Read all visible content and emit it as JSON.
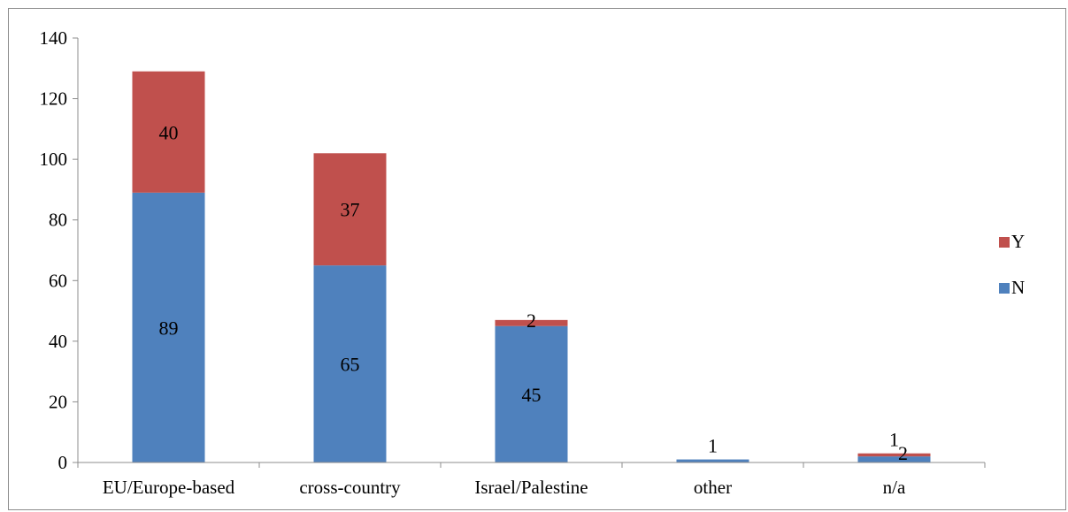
{
  "chart_data": {
    "type": "bar",
    "stacked": true,
    "title": "",
    "xlabel": "",
    "ylabel": "",
    "categories": [
      "EU/Europe-based",
      "cross-country",
      "Israel/Palestine",
      "other",
      "n/a"
    ],
    "series": [
      {
        "name": "N",
        "values": [
          89,
          65,
          45,
          1,
          2
        ],
        "color": "#4f81bd",
        "labels": [
          "89",
          "65",
          "45",
          "1",
          "2"
        ]
      },
      {
        "name": "Y",
        "values": [
          40,
          37,
          2,
          0,
          1
        ],
        "color": "#c0504d",
        "labels": [
          "40",
          "37",
          "2",
          "",
          "1"
        ]
      }
    ],
    "ylim": [
      0,
      140
    ],
    "yticks": [
      0,
      20,
      40,
      60,
      80,
      100,
      120,
      140
    ],
    "grid": false,
    "legend": {
      "position": "right",
      "order": [
        "Y",
        "N"
      ]
    }
  }
}
